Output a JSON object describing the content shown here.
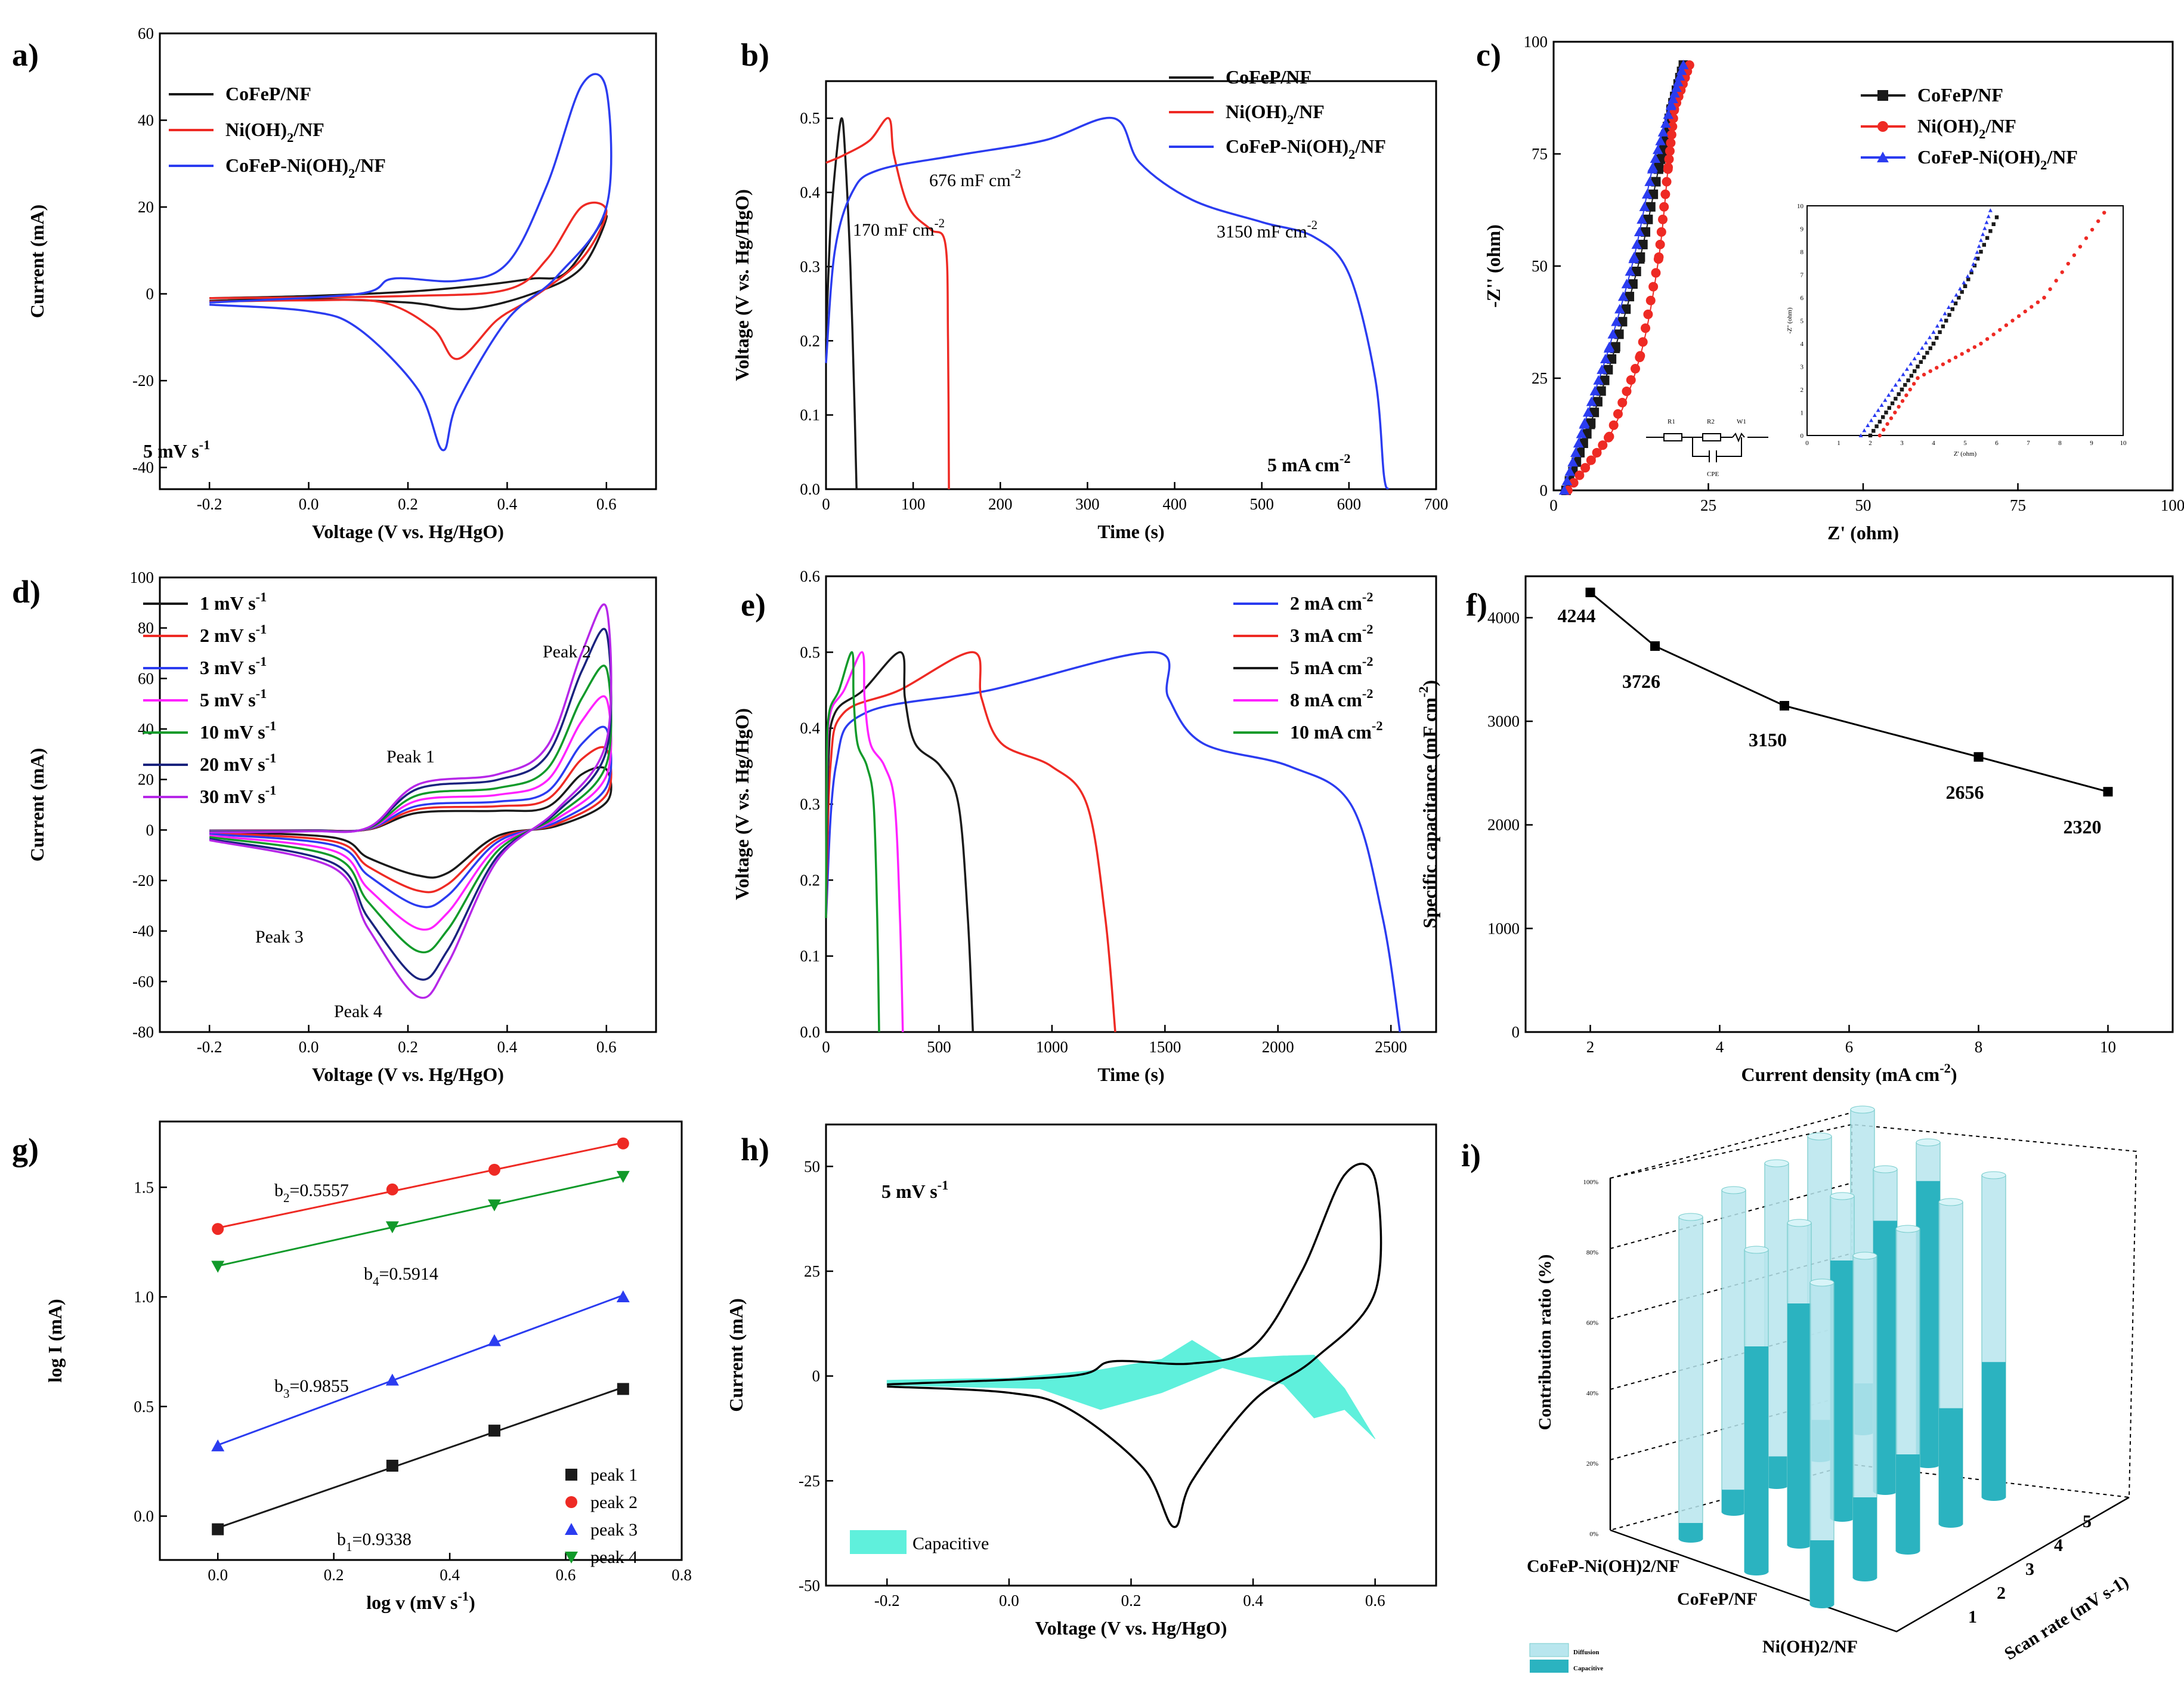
{
  "colors": {
    "black": "#1a1a1a",
    "red": "#ee2a24",
    "blue": "#2b3cf0",
    "magenta": "#ff22ff",
    "green": "#119a2a",
    "navy": "#1a237e",
    "violet": "#b627e8",
    "cyan": "#5ff0dc",
    "teal": "#2bb3c0",
    "lightblue": "#b8e6ee"
  },
  "chart_data": [
    {
      "id": "a",
      "type": "line",
      "panel_label": "a)",
      "xlabel": "Voltage (V vs. Hg/HgO)",
      "ylabel": "Current (mA)",
      "xlim": [
        -0.3,
        0.7
      ],
      "ylim": [
        -45,
        60
      ],
      "xticks": [
        "-0.2",
        "0.0",
        "0.2",
        "0.4",
        "0.6"
      ],
      "xtick_vals": [
        -0.2,
        0,
        0.2,
        0.4,
        0.6
      ],
      "yticks": [
        "-40",
        "-20",
        "0",
        "20",
        "40",
        "60"
      ],
      "ytick_vals": [
        -40,
        -20,
        0,
        20,
        40,
        60
      ],
      "legend": [
        "CoFeP/NF",
        "Ni(OH)2/NF",
        "CoFeP-Ni(OH)2/NF"
      ],
      "annotation": "5 mV s-1",
      "series": [
        {
          "name": "CoFeP/NF",
          "color": "black",
          "points": [
            [
              -0.2,
              -1
            ],
            [
              0,
              -0.5
            ],
            [
              0.2,
              0.5
            ],
            [
              0.35,
              2
            ],
            [
              0.45,
              3.5
            ],
            [
              0.52,
              5
            ],
            [
              0.6,
              18
            ],
            [
              0.55,
              6
            ],
            [
              0.45,
              0
            ],
            [
              0.32,
              -3.5
            ],
            [
              0.2,
              -2
            ],
            [
              0,
              -1.2
            ],
            [
              -0.2,
              -1.6
            ]
          ]
        },
        {
          "name": "Ni(OH)2/NF",
          "color": "red",
          "points": [
            [
              -0.2,
              -1
            ],
            [
              0.2,
              -0.5
            ],
            [
              0.4,
              1
            ],
            [
              0.48,
              8
            ],
            [
              0.55,
              20
            ],
            [
              0.6,
              19
            ],
            [
              0.55,
              8
            ],
            [
              0.45,
              -1
            ],
            [
              0.38,
              -6
            ],
            [
              0.3,
              -15
            ],
            [
              0.25,
              -8
            ],
            [
              0.15,
              -2
            ],
            [
              0,
              -1.5
            ],
            [
              -0.2,
              -1.8
            ]
          ]
        },
        {
          "name": "CoFeP-Ni(OH)2/NF",
          "color": "blue",
          "points": [
            [
              -0.2,
              -2
            ],
            [
              0.1,
              0
            ],
            [
              0.17,
              3.5
            ],
            [
              0.3,
              3
            ],
            [
              0.4,
              7
            ],
            [
              0.48,
              25
            ],
            [
              0.55,
              48
            ],
            [
              0.6,
              47
            ],
            [
              0.6,
              20
            ],
            [
              0.5,
              4
            ],
            [
              0.4,
              -6
            ],
            [
              0.3,
              -25
            ],
            [
              0.27,
              -36
            ],
            [
              0.22,
              -22
            ],
            [
              0.1,
              -8
            ],
            [
              0,
              -4
            ],
            [
              -0.2,
              -2.5
            ]
          ]
        }
      ]
    },
    {
      "id": "b",
      "type": "line",
      "panel_label": "b)",
      "xlabel": "Time (s)",
      "ylabel": "Voltage (V vs. Hg/HgO)",
      "xlim": [
        0,
        700
      ],
      "ylim": [
        0,
        0.55
      ],
      "xticks": [
        "0",
        "100",
        "200",
        "300",
        "400",
        "500",
        "600",
        "700"
      ],
      "xtick_vals": [
        0,
        100,
        200,
        300,
        400,
        500,
        600,
        700
      ],
      "yticks": [
        "0.0",
        "0.1",
        "0.2",
        "0.3",
        "0.4",
        "0.5"
      ],
      "ytick_vals": [
        0,
        0.1,
        0.2,
        0.3,
        0.4,
        0.5
      ],
      "legend": [
        "CoFeP/NF",
        "Ni(OH)2/NF",
        "CoFeP-Ni(OH)2/NF"
      ],
      "annotations": [
        "170 mF cm-2",
        "676 mF cm-2",
        "3150 mF cm-2",
        "5 mA cm-2"
      ],
      "series": [
        {
          "name": "CoFeP/NF",
          "color": "black",
          "points": [
            [
              0,
              0.2
            ],
            [
              5,
              0.35
            ],
            [
              12,
              0.45
            ],
            [
              18,
              0.5
            ],
            [
              22,
              0.45
            ],
            [
              28,
              0.3
            ],
            [
              33,
              0.1
            ],
            [
              35,
              0
            ]
          ]
        },
        {
          "name": "Ni(OH)2/NF",
          "color": "red",
          "points": [
            [
              0,
              0.44
            ],
            [
              20,
              0.45
            ],
            [
              50,
              0.47
            ],
            [
              72,
              0.5
            ],
            [
              78,
              0.45
            ],
            [
              95,
              0.38
            ],
            [
              120,
              0.35
            ],
            [
              137,
              0.33
            ],
            [
              140,
              0.2
            ],
            [
              141,
              0
            ]
          ]
        },
        {
          "name": "CoFeP-Ni(OH)2/NF",
          "color": "blue",
          "points": [
            [
              0,
              0.17
            ],
            [
              10,
              0.32
            ],
            [
              30,
              0.4
            ],
            [
              60,
              0.43
            ],
            [
              150,
              0.45
            ],
            [
              250,
              0.47
            ],
            [
              330,
              0.5
            ],
            [
              360,
              0.44
            ],
            [
              420,
              0.39
            ],
            [
              500,
              0.36
            ],
            [
              560,
              0.34
            ],
            [
              600,
              0.29
            ],
            [
              630,
              0.15
            ],
            [
              640,
              0.02
            ],
            [
              645,
              0
            ]
          ]
        }
      ]
    },
    {
      "id": "c",
      "type": "scatter",
      "panel_label": "c)",
      "xlabel": "Z' (ohm)",
      "ylabel": "-Z'' (ohm)",
      "xlim": [
        0,
        100
      ],
      "ylim": [
        0,
        100
      ],
      "xticks": [
        "0",
        "25",
        "50",
        "75",
        "100"
      ],
      "xtick_vals": [
        0,
        25,
        50,
        75,
        100
      ],
      "yticks": [
        "0",
        "25",
        "50",
        "75",
        "100"
      ],
      "ytick_vals": [
        0,
        25,
        50,
        75,
        100
      ],
      "legend": [
        "CoFeP/NF",
        "Ni(OH)2/NF",
        "CoFeP-Ni(OH)2/NF"
      ],
      "inset": {
        "xlabel": "Z' (ohm)",
        "ylabel": "-Z'' (ohm)",
        "xlim": [
          0,
          10
        ],
        "ylim": [
          0,
          10
        ],
        "ticks": [
          "0",
          "1",
          "2",
          "3",
          "4",
          "5",
          "6",
          "7",
          "8",
          "9",
          "10"
        ],
        "series": [
          {
            "name": "CoFeP/NF",
            "color": "black",
            "points": [
              [
                2,
                0
              ],
              [
                3,
                2
              ],
              [
                4,
                4
              ],
              [
                5,
                6.5
              ],
              [
                6,
                9.5
              ]
            ]
          },
          {
            "name": "Ni(OH)2/NF",
            "color": "red",
            "points": [
              [
                2.3,
                0
              ],
              [
                3.5,
                2.5
              ],
              [
                5.5,
                4
              ],
              [
                7.5,
                6
              ],
              [
                9.4,
                9.7
              ]
            ]
          },
          {
            "name": "CoFeP-Ni(OH)2/NF",
            "color": "blue",
            "points": [
              [
                1.7,
                0
              ],
              [
                2.8,
                2.2
              ],
              [
                4,
                4.5
              ],
              [
                5.2,
                7.2
              ],
              [
                5.8,
                9.8
              ]
            ]
          }
        ]
      },
      "circuit_labels": [
        "R1",
        "R2",
        "W1",
        "CPE"
      ],
      "series": [
        {
          "name": "CoFeP/NF",
          "color": "black",
          "points": [
            [
              2,
              0
            ],
            [
              6,
              15
            ],
            [
              10,
              32
            ],
            [
              14,
              52
            ],
            [
              17,
              72
            ],
            [
              19,
              85
            ],
            [
              21,
              95
            ]
          ]
        },
        {
          "name": "Ni(OH)2/NF",
          "color": "red",
          "points": [
            [
              2.3,
              0
            ],
            [
              9,
              12
            ],
            [
              14,
              30
            ],
            [
              17,
              52
            ],
            [
              18.5,
              72
            ],
            [
              19.5,
              85
            ],
            [
              22,
              95
            ]
          ]
        },
        {
          "name": "CoFeP-Ni(OH)2/NF",
          "color": "blue",
          "points": [
            [
              1.7,
              0
            ],
            [
              5,
              15
            ],
            [
              9,
              32
            ],
            [
              13,
              52
            ],
            [
              16,
              72
            ],
            [
              19,
              86
            ],
            [
              21,
              95
            ]
          ]
        }
      ]
    },
    {
      "id": "d",
      "type": "line",
      "panel_label": "d)",
      "xlabel": "Voltage (V vs. Hg/HgO)",
      "ylabel": "Current (mA)",
      "xlim": [
        -0.3,
        0.7
      ],
      "ylim": [
        -80,
        100
      ],
      "xticks": [
        "-0.2",
        "0.0",
        "0.2",
        "0.4",
        "0.6"
      ],
      "xtick_vals": [
        -0.2,
        0,
        0.2,
        0.4,
        0.6
      ],
      "yticks": [
        "-80",
        "-60",
        "-40",
        "-20",
        "0",
        "20",
        "40",
        "60",
        "80",
        "100"
      ],
      "ytick_vals": [
        -80,
        -60,
        -40,
        -20,
        0,
        20,
        40,
        60,
        80,
        100
      ],
      "legend": [
        "1 mV s-1",
        "2 mV s-1",
        "3 mV s-1",
        "5 mV s-1",
        "10 mV s-1",
        "20 mV s-1",
        "30 mV s-1"
      ],
      "peak_labels": [
        "Peak 1",
        "Peak 2",
        "Peak 3",
        "Peak 4"
      ],
      "series": [
        {
          "name": "1 mV s-1",
          "color": "black",
          "scale": 0.2
        },
        {
          "name": "2 mV s-1",
          "color": "red",
          "scale": 0.3
        },
        {
          "name": "3 mV s-1",
          "color": "blue",
          "scale": 0.4
        },
        {
          "name": "5 mV s-1",
          "color": "magenta",
          "scale": 0.55
        },
        {
          "name": "10 mV s-1",
          "color": "green",
          "scale": 0.7
        },
        {
          "name": "20 mV s-1",
          "color": "navy",
          "scale": 0.88
        },
        {
          "name": "30 mV s-1",
          "color": "violet",
          "scale": 1.0
        }
      ]
    },
    {
      "id": "e",
      "type": "line",
      "panel_label": "e)",
      "xlabel": "Time (s)",
      "ylabel": "Voltage (V vs. Hg/HgO)",
      "xlim": [
        0,
        2700
      ],
      "ylim": [
        0,
        0.6
      ],
      "xticks": [
        "0",
        "500",
        "1000",
        "1500",
        "2000",
        "2500"
      ],
      "xtick_vals": [
        0,
        500,
        1000,
        1500,
        2000,
        2500
      ],
      "yticks": [
        "0.0",
        "0.1",
        "0.2",
        "0.3",
        "0.4",
        "0.5",
        "0.6"
      ],
      "ytick_vals": [
        0,
        0.1,
        0.2,
        0.3,
        0.4,
        0.5,
        0.6
      ],
      "legend": [
        "2 mA cm-2",
        "3 mA cm-2",
        "5 mA cm-2",
        "8 mA cm-2",
        "10 mA cm-2"
      ],
      "series": [
        {
          "name": "2 mA cm-2",
          "color": "blue",
          "charge_end": 1450,
          "discharge_end": 2540
        },
        {
          "name": "3 mA cm-2",
          "color": "red",
          "charge_end": 650,
          "discharge_end": 1280
        },
        {
          "name": "5 mA cm-2",
          "color": "black",
          "charge_end": 330,
          "discharge_end": 650
        },
        {
          "name": "8 mA cm-2",
          "color": "magenta",
          "charge_end": 160,
          "discharge_end": 340
        },
        {
          "name": "10 mA cm-2",
          "color": "green",
          "charge_end": 115,
          "discharge_end": 235
        }
      ]
    },
    {
      "id": "f",
      "type": "line",
      "panel_label": "f)",
      "xlabel": "Current density (mA cm-2)",
      "ylabel": "Specific capacitance (mF cm-2)",
      "xlim": [
        1,
        11
      ],
      "ylim": [
        0,
        4400
      ],
      "xticks": [
        "2",
        "4",
        "6",
        "8",
        "10"
      ],
      "xtick_vals": [
        2,
        4,
        6,
        8,
        10
      ],
      "yticks": [
        "0",
        "1000",
        "2000",
        "3000",
        "4000"
      ],
      "ytick_vals": [
        0,
        1000,
        2000,
        3000,
        4000
      ],
      "x": [
        2,
        3,
        5,
        8,
        10
      ],
      "values": [
        4244,
        3726,
        3150,
        2656,
        2320
      ],
      "data_labels": [
        "4244",
        "3726",
        "3150",
        "2656",
        "2320"
      ]
    },
    {
      "id": "g",
      "type": "scatter",
      "panel_label": "g)",
      "xlabel": "log v (mV s-1)",
      "ylabel": "log I (mA)",
      "xlim": [
        -0.1,
        0.8
      ],
      "ylim": [
        -0.2,
        1.8
      ],
      "xticks": [
        "0.0",
        "0.2",
        "0.4",
        "0.6",
        "0.8"
      ],
      "xtick_vals": [
        0,
        0.2,
        0.4,
        0.6,
        0.8
      ],
      "yticks": [
        "0.0",
        "0.5",
        "1.0",
        "1.5"
      ],
      "ytick_vals": [
        0,
        0.5,
        1.0,
        1.5
      ],
      "legend": [
        "peak 1",
        "peak 2",
        "peak 3",
        "peak 4"
      ],
      "slope_labels": [
        "b2=0.5557",
        "b4=0.5914",
        "b3=0.9855",
        "b1=0.9338"
      ],
      "x": [
        0,
        0.301,
        0.477,
        0.699
      ],
      "series": [
        {
          "name": "peak 1",
          "color": "black",
          "marker": "square",
          "values": [
            -0.06,
            0.23,
            0.39,
            0.58
          ]
        },
        {
          "name": "peak 2",
          "color": "red",
          "marker": "circle",
          "values": [
            1.31,
            1.49,
            1.58,
            1.7
          ]
        },
        {
          "name": "peak 3",
          "color": "blue",
          "marker": "triangle",
          "values": [
            0.32,
            0.62,
            0.8,
            1.0
          ]
        },
        {
          "name": "peak 4",
          "color": "green",
          "marker": "triangle-down",
          "values": [
            1.14,
            1.32,
            1.42,
            1.55
          ]
        }
      ]
    },
    {
      "id": "h",
      "type": "area",
      "panel_label": "h)",
      "xlabel": "Voltage (V vs. Hg/HgO)",
      "ylabel": "Current (mA)",
      "xlim": [
        -0.3,
        0.7
      ],
      "ylim": [
        -50,
        60
      ],
      "xticks": [
        "-0.2",
        "0.0",
        "0.2",
        "0.4",
        "0.6"
      ],
      "xtick_vals": [
        -0.2,
        0,
        0.2,
        0.4,
        0.6
      ],
      "yticks": [
        "-50",
        "-25",
        "0",
        "25",
        "50"
      ],
      "ytick_vals": [
        -50,
        -25,
        0,
        25,
        50
      ],
      "annotation": "5 mV s-1",
      "legend": [
        "Capacitive"
      ]
    },
    {
      "id": "i",
      "type": "bar",
      "panel_label": "i)",
      "zlabel": "Contribution ratio (%)",
      "xlabel": "",
      "ylabel": "Scan rate (mV s-1)",
      "categories": [
        "CoFeP-Ni(OH)2/NF",
        "CoFeP/NF",
        "Ni(OH)2/NF"
      ],
      "scan_rates": [
        "1",
        "2",
        "3",
        "4",
        "5"
      ],
      "zticks": [
        "0%",
        "20%",
        "40%",
        "60%",
        "80%",
        "100%"
      ],
      "legend": [
        "Diffusion",
        "Capacitive"
      ],
      "capacitive_pct": [
        [
          5,
          7,
          9,
          12,
          15
        ],
        [
          70,
          75,
          80,
          84,
          88
        ],
        [
          20,
          25,
          30,
          36,
          42
        ]
      ]
    }
  ]
}
